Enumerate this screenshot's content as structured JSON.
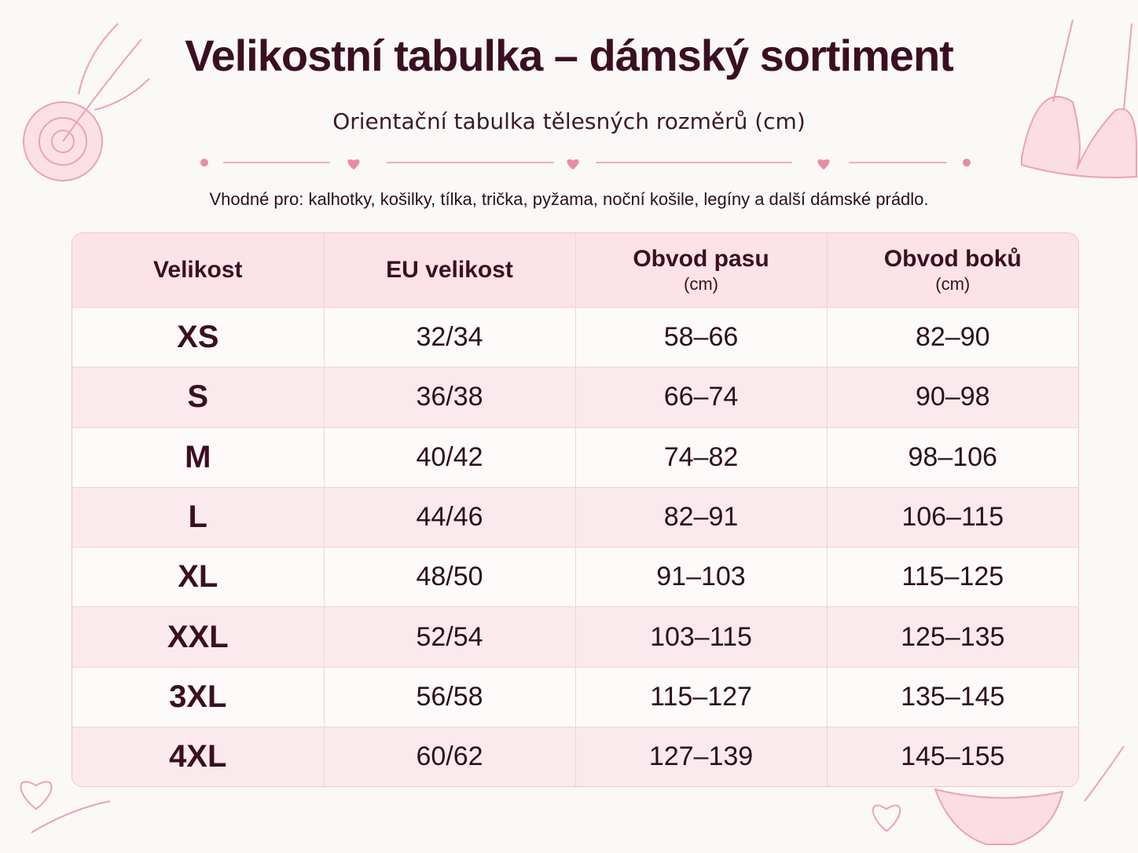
{
  "header": {
    "title": "Velikostní tabulka – dámský sortiment",
    "subtitle": "Orientační tabulka tělesných rozměrů (cm)",
    "note": "Vhodné pro: kalhotky, košilky, tílka, trička, pyžama, noční košile, legíny a další dámské prádlo."
  },
  "table": {
    "columns": [
      {
        "name": "Velikost"
      },
      {
        "name": "EU velikost"
      },
      {
        "name": "Obvod pasu",
        "unit": "(cm)"
      },
      {
        "name": "Obvod boků",
        "unit": "(cm)"
      }
    ],
    "rows": [
      [
        "XS",
        "32/34",
        "58–66",
        "82–90"
      ],
      [
        "S",
        "36/38",
        "66–74",
        "90–98"
      ],
      [
        "M",
        "40/42",
        "74–82",
        "98–106"
      ],
      [
        "L",
        "44/46",
        "82–91",
        "106–115"
      ],
      [
        "XL",
        "48/50",
        "91–103",
        "115–125"
      ],
      [
        "XXL",
        "52/54",
        "103–115",
        "125–135"
      ],
      [
        "3XL",
        "56/58",
        "115–127",
        "135–145"
      ],
      [
        "4XL",
        "60/62",
        "127–139",
        "145–155"
      ]
    ]
  }
}
